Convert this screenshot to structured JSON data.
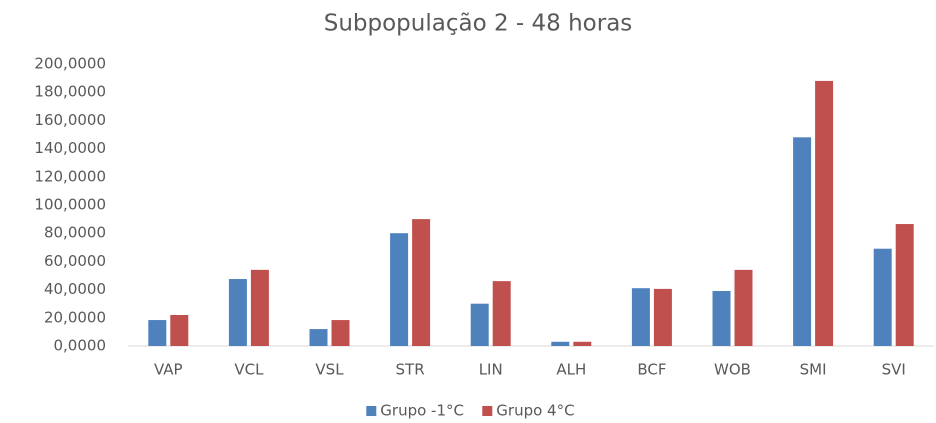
{
  "chart_data": {
    "type": "bar",
    "title": "Subpopulação   2 - 48 horas",
    "categories": [
      "VAP",
      "VCL",
      "VSL",
      "STR",
      "LIN",
      "ALH",
      "BCF",
      "WOB",
      "SMI",
      "SVI"
    ],
    "series": [
      {
        "name": "Grupo -1°C",
        "color": "#4f81bd",
        "values": [
          18.4,
          47.5,
          12,
          80,
          30,
          3,
          41,
          39,
          148,
          69
        ]
      },
      {
        "name": "Grupo 4°C",
        "color": "#c0504d",
        "values": [
          22,
          54,
          18.4,
          90,
          46,
          3,
          40.5,
          54,
          188,
          86.5
        ]
      }
    ],
    "ylim": [
      0,
      200
    ],
    "yticks": [
      {
        "value": 0,
        "label": "0,0000"
      },
      {
        "value": 20,
        "label": "20,0000"
      },
      {
        "value": 40,
        "label": "40,0000"
      },
      {
        "value": 60,
        "label": "60,0000"
      },
      {
        "value": 80,
        "label": "80,0000"
      },
      {
        "value": 100,
        "label": "100,0000"
      },
      {
        "value": 120,
        "label": "120,0000"
      },
      {
        "value": 140,
        "label": "140,0000"
      },
      {
        "value": 160,
        "label": "160,0000"
      },
      {
        "value": 180,
        "label": "180,0000"
      },
      {
        "value": 200,
        "label": "200,0000"
      }
    ],
    "grid": false,
    "legend": "bottom"
  }
}
